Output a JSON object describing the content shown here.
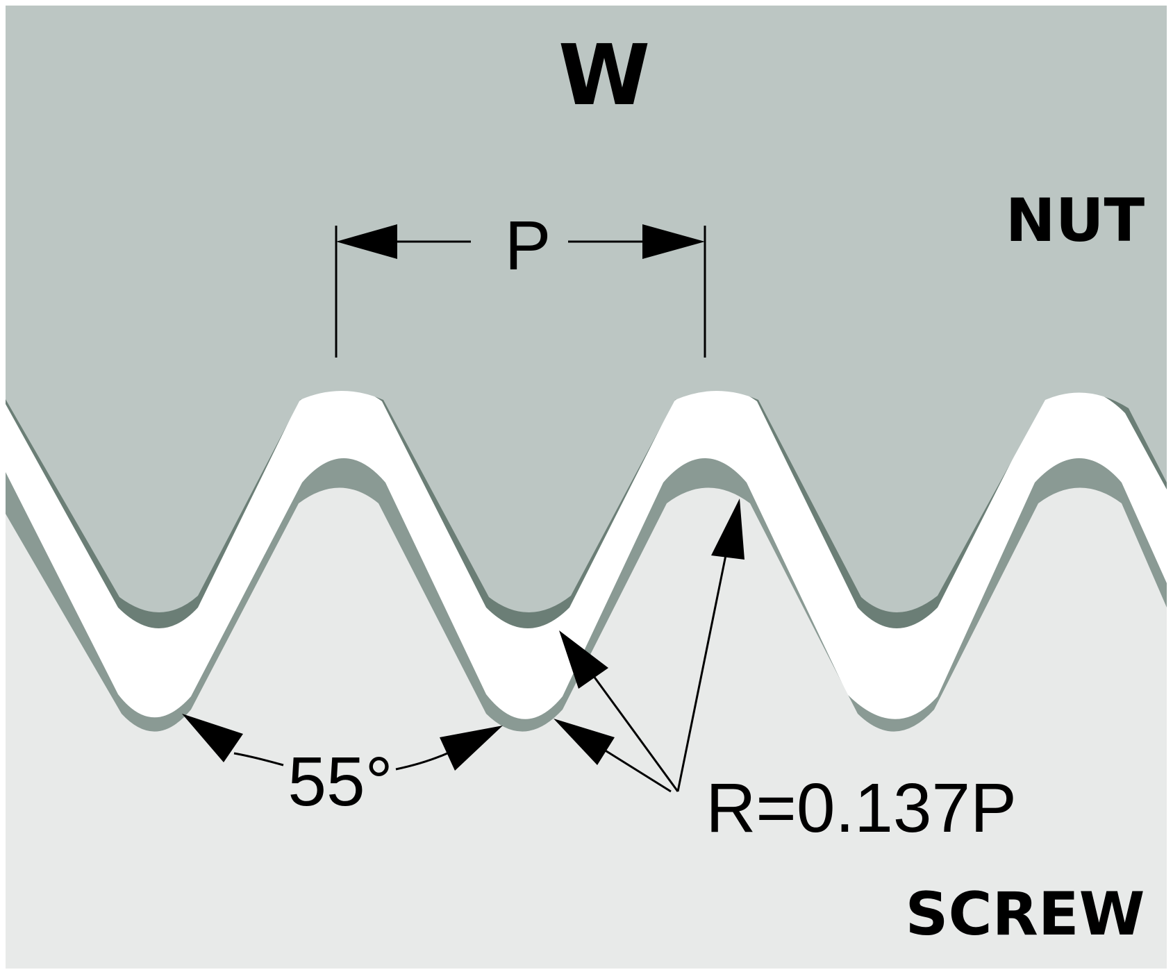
{
  "labels": {
    "title": "W",
    "nut": "NUT",
    "screw": "SCREW",
    "pitch": "P",
    "angle": "55°",
    "radius": "R=0.137P"
  },
  "colors": {
    "nut_fill": "#bcc6c3",
    "nut_edge": "#6b7e76",
    "screw_fill": "#e8eae9",
    "screw_edge": "#8a9a94",
    "gap": "#ffffff",
    "ink": "#000000"
  }
}
